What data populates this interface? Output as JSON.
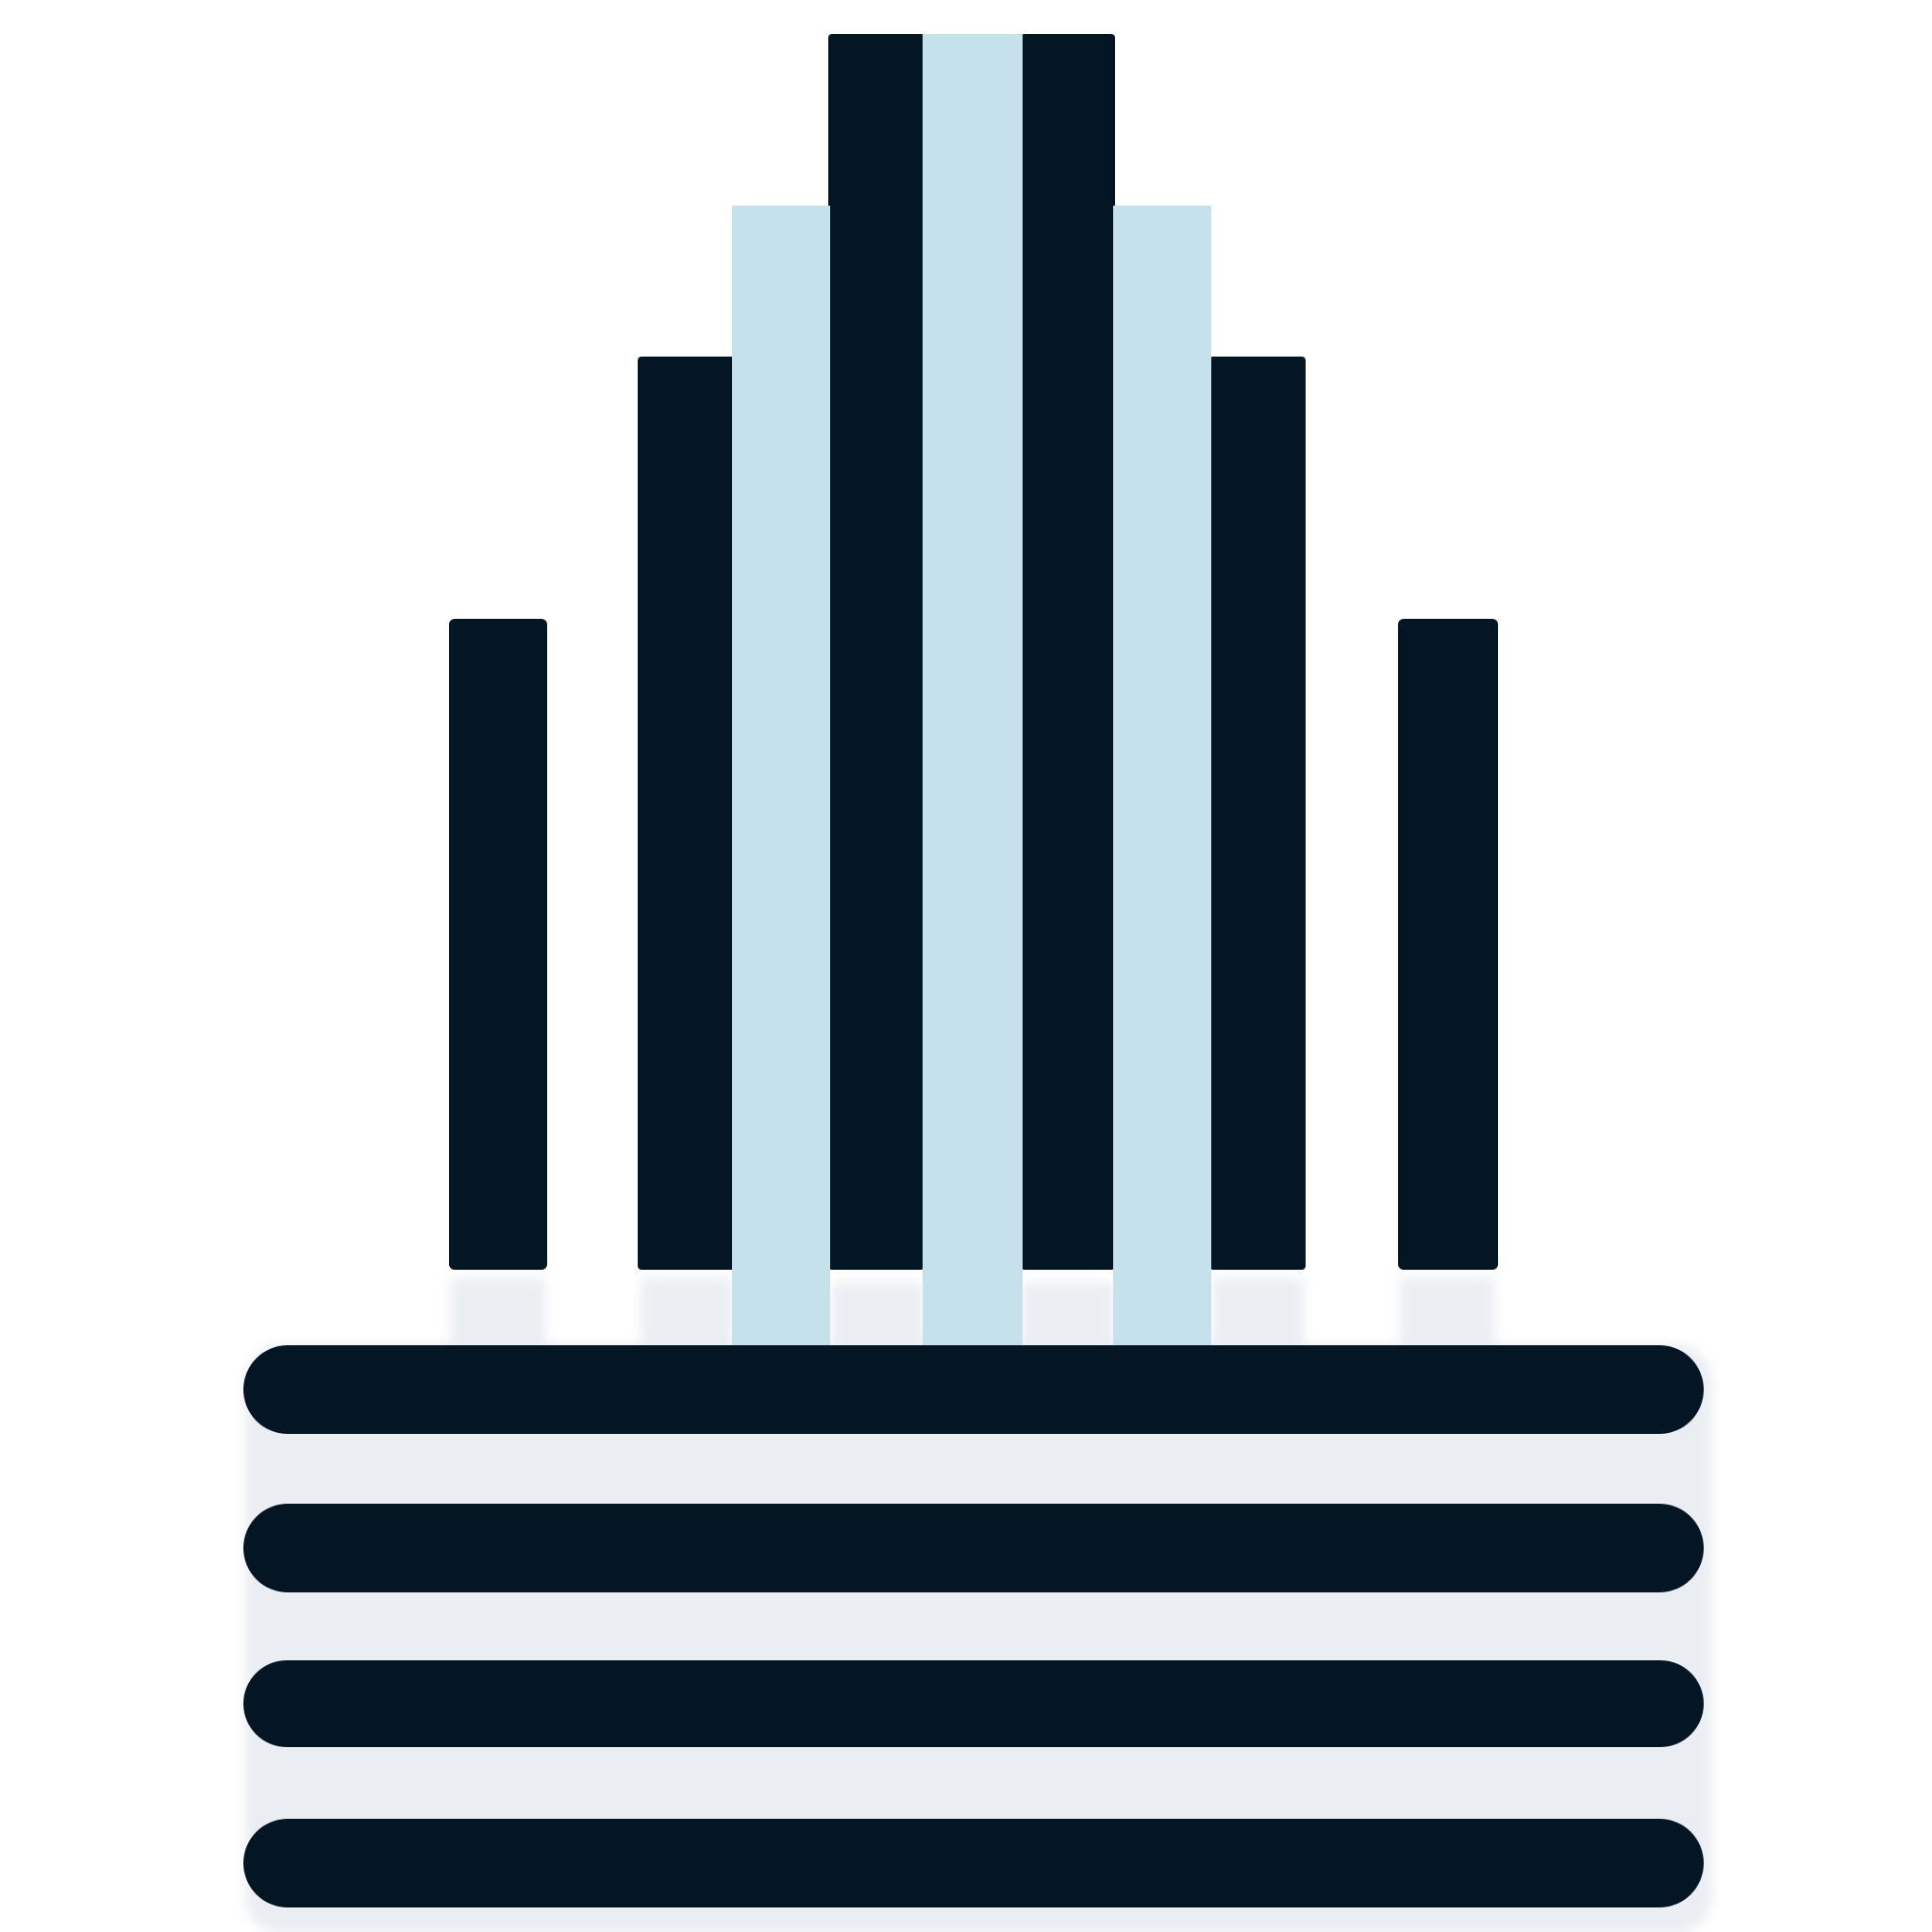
{
  "logo": {
    "colors": {
      "dark": "#041624",
      "light": "#c5e1ec",
      "background": "#ffffff",
      "reflection": "#d9dfe7"
    },
    "elements": {
      "columns": 9,
      "horizontal_bars": 4
    }
  }
}
